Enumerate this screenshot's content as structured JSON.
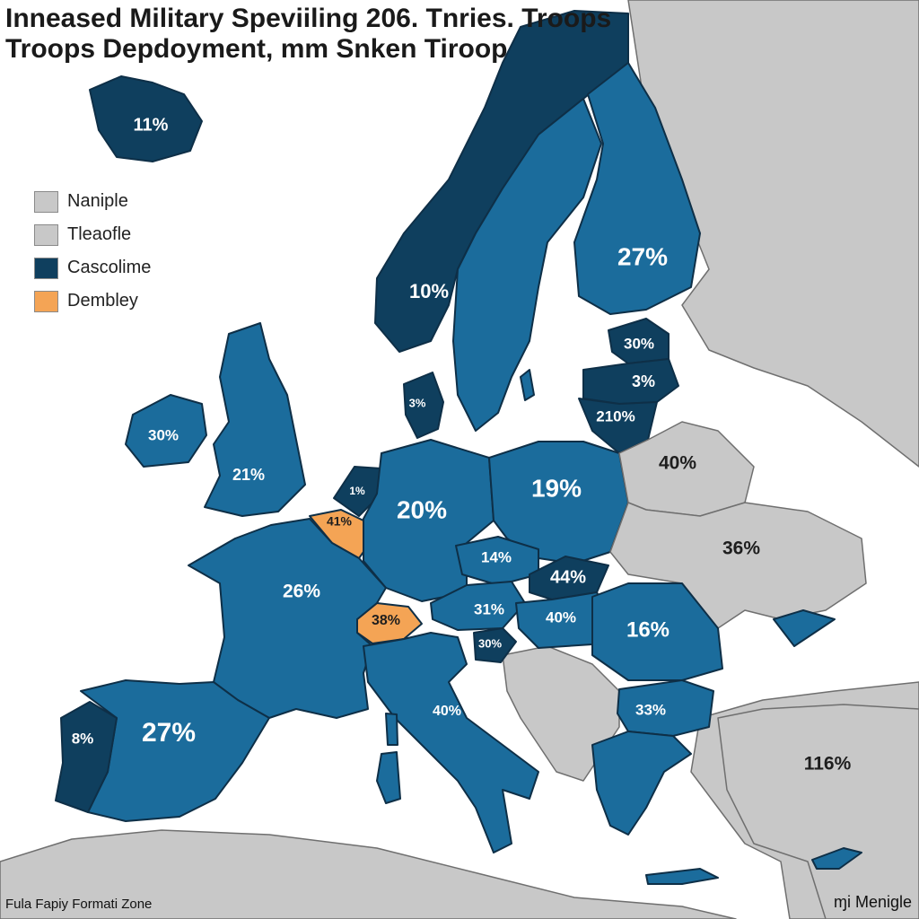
{
  "title": {
    "line1": "Inneased Military Speviiling 206. Tnries. Troops",
    "line2": "Troops Depdoyment, mm Snken Tiroop"
  },
  "legend": [
    {
      "label": "Naniple",
      "color": "#c8c8c8"
    },
    {
      "label": "Tleaofle",
      "color": "#c8c8c8"
    },
    {
      "label": "Cascolime",
      "color": "#0f3f5e"
    },
    {
      "label": "Dembley",
      "color": "#f4a455"
    }
  ],
  "colors": {
    "medium_blue": "#1b6c9c",
    "dark_blue": "#0f3f5e",
    "orange": "#f4a455",
    "grey": "#c8c8c8",
    "sea": "#ffffff"
  },
  "regions": [
    {
      "id": "iceland",
      "label": "11%",
      "fill": "dark"
    },
    {
      "id": "norway",
      "label": "10%",
      "fill": "dark"
    },
    {
      "id": "sweden",
      "label": "",
      "fill": "medium"
    },
    {
      "id": "finland",
      "label": "27%",
      "fill": "medium"
    },
    {
      "id": "estonia",
      "label": "30%",
      "fill": "dark"
    },
    {
      "id": "latvia",
      "label": "3%",
      "fill": "dark"
    },
    {
      "id": "lithuania",
      "label": "210%",
      "fill": "dark"
    },
    {
      "id": "ireland",
      "label": "30%",
      "fill": "medium"
    },
    {
      "id": "uk",
      "label": "21%",
      "fill": "medium"
    },
    {
      "id": "denmark",
      "label": "3%",
      "fill": "dark"
    },
    {
      "id": "netherlands",
      "label": "1%",
      "fill": "dark"
    },
    {
      "id": "belgium",
      "label": "41%",
      "fill": "orange"
    },
    {
      "id": "germany",
      "label": "20%",
      "fill": "medium"
    },
    {
      "id": "poland",
      "label": "19%",
      "fill": "medium"
    },
    {
      "id": "belarus",
      "label": "40%",
      "fill": "grey"
    },
    {
      "id": "ukraine",
      "label": "36%",
      "fill": "grey"
    },
    {
      "id": "czechia",
      "label": "14%",
      "fill": "medium"
    },
    {
      "id": "slovakia",
      "label": "44%",
      "fill": "dark"
    },
    {
      "id": "austria",
      "label": "31%",
      "fill": "medium"
    },
    {
      "id": "hungary",
      "label": "40%",
      "fill": "medium"
    },
    {
      "id": "romania",
      "label": "16%",
      "fill": "medium"
    },
    {
      "id": "slovenia",
      "label": "30%",
      "fill": "dark"
    },
    {
      "id": "switzerland",
      "label": "38%",
      "fill": "orange"
    },
    {
      "id": "france",
      "label": "26%",
      "fill": "medium"
    },
    {
      "id": "spain",
      "label": "27%",
      "fill": "medium"
    },
    {
      "id": "portugal",
      "label": "8%",
      "fill": "dark"
    },
    {
      "id": "italy",
      "label": "40%",
      "fill": "medium"
    },
    {
      "id": "bulgaria",
      "label": "33%",
      "fill": "medium"
    },
    {
      "id": "greece",
      "label": "",
      "fill": "medium"
    },
    {
      "id": "turkey",
      "label": "116%",
      "fill": "grey"
    }
  ],
  "footer": {
    "left": "Fula Fapiy Formati Zone",
    "right": "ɱi Menigle"
  }
}
